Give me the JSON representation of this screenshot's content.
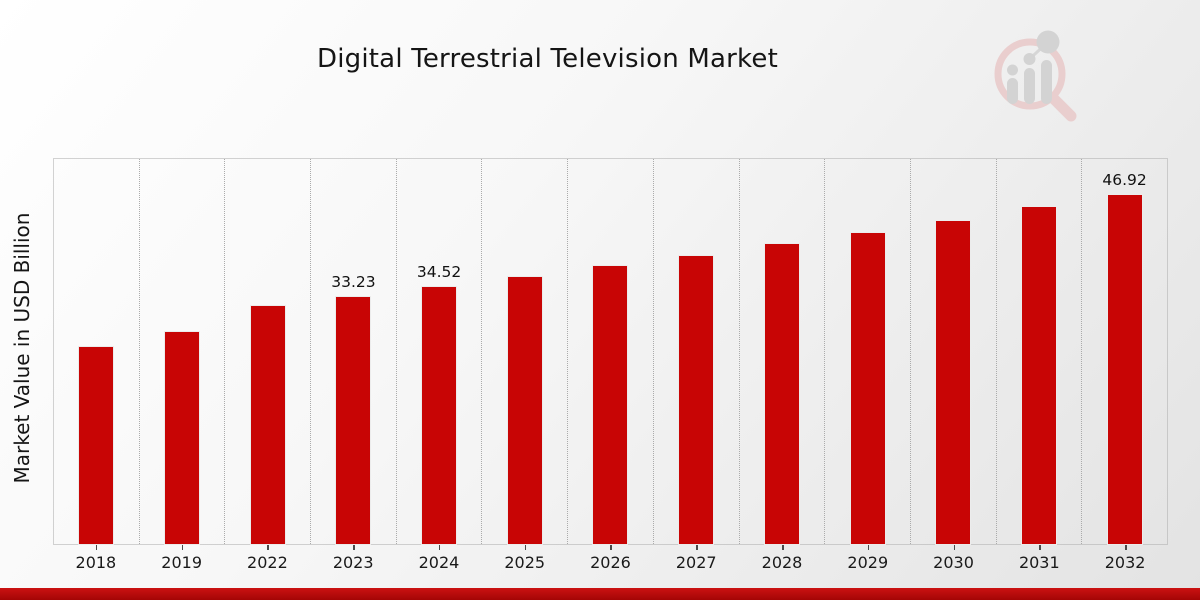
{
  "header": {
    "title": "Digital Terrestrial Television Market"
  },
  "colors": {
    "bar": "#c80505",
    "bar_edge": "#ececec",
    "footer_stripe": "#b30d0d",
    "gridline": "#ababab",
    "background_top": "#ffffff",
    "background_bottom": "#e3e3e3",
    "watermark_pink": "#e9c9c9",
    "watermark_gray": "#cfcfcf"
  },
  "watermark": {
    "icon": "magnifier-growth-bars-logo"
  },
  "chart_data": {
    "type": "bar",
    "title": "Digital Terrestrial Television Market",
    "xlabel": "",
    "ylabel": "Market Value in USD Billion",
    "categories": [
      "2018",
      "2019",
      "2022",
      "2023",
      "2024",
      "2025",
      "2026",
      "2027",
      "2028",
      "2029",
      "2030",
      "2031",
      "2032"
    ],
    "values": [
      26.4,
      28.5,
      31.9,
      33.23,
      34.52,
      35.9,
      37.3,
      38.7,
      40.3,
      41.8,
      43.4,
      45.2,
      46.92
    ],
    "data_labels": [
      null,
      null,
      null,
      "33.23",
      "34.52",
      null,
      null,
      null,
      null,
      null,
      null,
      null,
      "46.92"
    ],
    "bar_color": "#c80505",
    "ylim": [
      0,
      51.7
    ],
    "grid": "vertical-dotted-between-categories",
    "legend": "none",
    "y_tick_labels": "none"
  }
}
